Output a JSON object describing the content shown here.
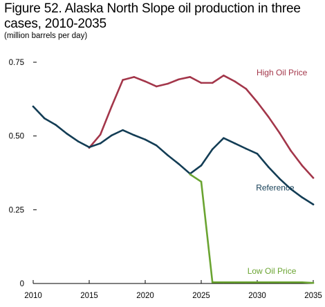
{
  "title": "Figure 52. Alaska North Slope oil production in three cases, 2010-2035",
  "subtitle": "(million barrels per day)",
  "chart_data": {
    "type": "line",
    "title": "Figure 52. Alaska North Slope oil production in three cases, 2010-2035",
    "subtitle": "(million barrels per day)",
    "x": [
      2010,
      2011,
      2012,
      2013,
      2014,
      2015,
      2016,
      2017,
      2018,
      2019,
      2020,
      2021,
      2022,
      2023,
      2024,
      2025,
      2026,
      2027,
      2028,
      2029,
      2030,
      2031,
      2032,
      2033,
      2034,
      2035
    ],
    "xlim": [
      2010,
      2035
    ],
    "ylim": [
      0,
      0.75
    ],
    "x_ticks": [
      2010,
      2015,
      2020,
      2025,
      2030,
      2035
    ],
    "x_tick_labels": [
      "2010",
      "2015",
      "2020",
      "2025",
      "2030",
      "2035"
    ],
    "y_ticks": [
      0,
      0.25,
      0.5,
      0.75
    ],
    "y_tick_labels": [
      "0",
      "0.25",
      "0.50",
      "0.75"
    ],
    "grid": false,
    "series": [
      {
        "name": "High Oil Price",
        "color": "#a3364a",
        "values": [
          null,
          null,
          null,
          null,
          null,
          0.46,
          0.505,
          0.6,
          0.69,
          0.7,
          0.685,
          0.668,
          0.677,
          0.692,
          0.7,
          0.68,
          0.68,
          0.705,
          0.685,
          0.66,
          0.615,
          0.565,
          0.51,
          0.45,
          0.4,
          0.358
        ]
      },
      {
        "name": "Reference",
        "color": "#133d55",
        "values": [
          0.6,
          0.56,
          0.538,
          0.508,
          0.482,
          0.462,
          0.475,
          0.502,
          0.52,
          0.503,
          0.488,
          0.468,
          0.435,
          0.405,
          0.372,
          0.4,
          0.455,
          0.493,
          0.475,
          0.457,
          0.44,
          0.395,
          0.355,
          0.32,
          0.292,
          0.268
        ]
      },
      {
        "name": "Low Oil Price",
        "color": "#6aa431",
        "values": [
          null,
          null,
          null,
          null,
          null,
          null,
          null,
          null,
          null,
          null,
          null,
          null,
          null,
          null,
          0.37,
          0.345,
          0.004,
          0.004,
          0.004,
          0.004,
          0.004,
          0.004,
          0.004,
          0.004,
          0.004,
          0.002
        ]
      }
    ],
    "labels": [
      {
        "text": "High Oil Price",
        "series": "High Oil Price",
        "x": 2032.2,
        "y": 0.705
      },
      {
        "text": "Reference",
        "series": "Reference",
        "x": 2031.6,
        "y": 0.315
      },
      {
        "text": "Low Oil Price",
        "series": "Low Oil Price",
        "x": 2031.3,
        "y": 0.033
      }
    ]
  }
}
